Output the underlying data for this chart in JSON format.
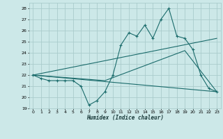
{
  "title": "",
  "xlabel": "Humidex (Indice chaleur)",
  "ylabel": "",
  "bg_color": "#cce8e8",
  "grid_color": "#aacccc",
  "line_color": "#1a6b6b",
  "xlim": [
    -0.5,
    23.5
  ],
  "ylim": [
    19,
    28.5
  ],
  "yticks": [
    19,
    20,
    21,
    22,
    23,
    24,
    25,
    26,
    27,
    28
  ],
  "xticks": [
    0,
    1,
    2,
    3,
    4,
    5,
    6,
    7,
    8,
    9,
    10,
    11,
    12,
    13,
    14,
    15,
    16,
    17,
    18,
    19,
    20,
    21,
    22,
    23
  ],
  "line1_x": [
    0,
    1,
    2,
    3,
    4,
    5,
    6,
    7,
    8,
    9,
    10,
    11,
    12,
    13,
    14,
    15,
    16,
    17,
    18,
    19,
    20,
    21,
    22,
    23
  ],
  "line1_y": [
    22,
    21.7,
    21.5,
    21.5,
    21.5,
    21.5,
    21.0,
    19.3,
    19.7,
    20.5,
    22.0,
    24.7,
    25.8,
    25.5,
    26.5,
    25.3,
    27.0,
    28.0,
    25.5,
    25.3,
    24.3,
    22.0,
    20.8,
    20.5
  ],
  "line2_x": [
    0,
    9,
    19,
    23
  ],
  "line2_y": [
    22,
    21.5,
    24.2,
    20.5
  ],
  "line3_x": [
    0,
    23
  ],
  "line3_y": [
    22,
    25.3
  ],
  "line4_x": [
    0,
    23
  ],
  "line4_y": [
    22,
    20.5
  ]
}
